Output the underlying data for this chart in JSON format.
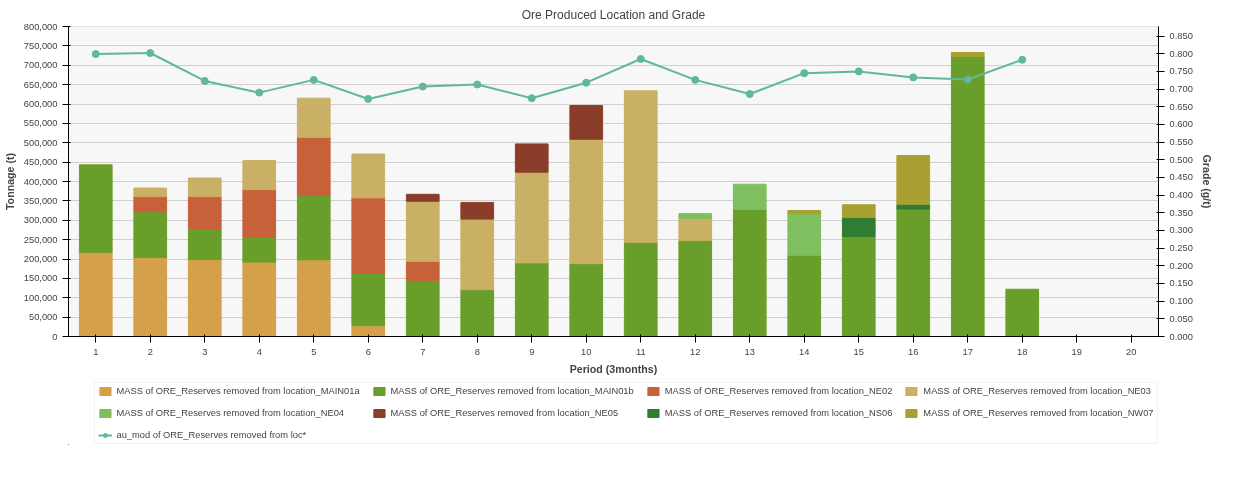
{
  "chart_data": {
    "type": "bar",
    "stacked": true,
    "title": "Ore Produced Location and Grade",
    "xlabel": "Period (3months)",
    "ylabel": "Tonnage (t)",
    "y2label": "Grade (g/t)",
    "x": [
      1,
      2,
      3,
      4,
      5,
      6,
      7,
      8,
      9,
      10,
      11,
      12,
      13,
      14,
      15,
      16,
      17,
      18
    ],
    "xlim": [
      0.5,
      20.5
    ],
    "xticks": [
      1,
      2,
      3,
      4,
      5,
      6,
      7,
      8,
      9,
      10,
      11,
      12,
      13,
      14,
      15,
      16,
      17,
      18,
      19,
      20
    ],
    "ylim": [
      0,
      800000
    ],
    "yticks": [
      {
        "value": 0,
        "label": "0"
      },
      {
        "value": 50000,
        "label": "50,000"
      },
      {
        "value": 100000,
        "label": "100,000"
      },
      {
        "value": 150000,
        "label": "150,000"
      },
      {
        "value": 200000,
        "label": "200,000"
      },
      {
        "value": 250000,
        "label": "250,000"
      },
      {
        "value": 300000,
        "label": "300,000"
      },
      {
        "value": 350000,
        "label": "350,000"
      },
      {
        "value": 400000,
        "label": "400,000"
      },
      {
        "value": 450000,
        "label": "450,000"
      },
      {
        "value": 500000,
        "label": "500,000"
      },
      {
        "value": 550000,
        "label": "550,000"
      },
      {
        "value": 600000,
        "label": "600,000"
      },
      {
        "value": 650000,
        "label": "650,000"
      },
      {
        "value": 700000,
        "label": "700,000"
      },
      {
        "value": 750000,
        "label": "750,000"
      },
      {
        "value": 800000,
        "label": "800,000"
      }
    ],
    "y2lim": [
      0,
      0.877
    ],
    "y2ticks": [
      {
        "value": 0,
        "label": "0.000"
      },
      {
        "value": 0.05,
        "label": "0.050"
      },
      {
        "value": 0.1,
        "label": "0.100"
      },
      {
        "value": 0.15,
        "label": "0.150"
      },
      {
        "value": 0.2,
        "label": "0.200"
      },
      {
        "value": 0.25,
        "label": "0.250"
      },
      {
        "value": 0.3,
        "label": "0.300"
      },
      {
        "value": 0.35,
        "label": "0.350"
      },
      {
        "value": 0.4,
        "label": "0.400"
      },
      {
        "value": 0.45,
        "label": "0.450"
      },
      {
        "value": 0.5,
        "label": "0.500"
      },
      {
        "value": 0.55,
        "label": "0.550"
      },
      {
        "value": 0.6,
        "label": "0.600"
      },
      {
        "value": 0.65,
        "label": "0.650"
      },
      {
        "value": 0.7,
        "label": "0.700"
      },
      {
        "value": 0.75,
        "label": "0.750"
      },
      {
        "value": 0.8,
        "label": "0.800"
      },
      {
        "value": 0.85,
        "label": "0.850"
      }
    ],
    "grid": "y",
    "legend": "bottom",
    "series": [
      {
        "name": "MASS of ORE_Reserves removed from location_MAIN01a",
        "color": "#d4a04a",
        "values": [
          217000,
          204000,
          199000,
          192000,
          198000,
          28000,
          null,
          null,
          null,
          null,
          null,
          null,
          null,
          null,
          null,
          null,
          null,
          null
        ]
      },
      {
        "name": "MASS of ORE_Reserves removed from location_MAIN01b",
        "color": "#6a9e2a",
        "values": [
          226000,
          118000,
          78000,
          65000,
          167000,
          135000,
          145000,
          121000,
          190000,
          188000,
          243000,
          248000,
          328000,
          210000,
          258000,
          329000,
          723000,
          122000
        ]
      },
      {
        "name": "MASS of ORE_Reserves removed from location_NE02",
        "color": "#c8603a",
        "values": [
          null,
          39000,
          84000,
          122000,
          149000,
          195000,
          49000,
          null,
          null,
          null,
          null,
          null,
          null,
          null,
          null,
          null,
          null,
          null
        ]
      },
      {
        "name": "MASS of ORE_Reserves removed from location_NE03",
        "color": "#c9b064",
        "values": [
          null,
          22000,
          48000,
          75000,
          101000,
          113000,
          155000,
          182000,
          234000,
          321000,
          391000,
          57000,
          null,
          null,
          null,
          null,
          null,
          null
        ]
      },
      {
        "name": "MASS of ORE_Reserves removed from location_NE04",
        "color": "#7fbf5f",
        "values": [
          null,
          null,
          null,
          null,
          null,
          null,
          null,
          null,
          null,
          null,
          null,
          12000,
          65000,
          107000,
          null,
          null,
          null,
          null
        ]
      },
      {
        "name": "MASS of ORE_Reserves removed from location_NE05",
        "color": "#8a3e2a",
        "values": [
          null,
          null,
          null,
          null,
          null,
          null,
          18000,
          43000,
          73000,
          87000,
          null,
          null,
          null,
          null,
          null,
          null,
          null,
          null
        ]
      },
      {
        "name": "MASS of ORE_Reserves removed from location_NS06",
        "color": "#2e7d32",
        "values": [
          null,
          null,
          null,
          null,
          null,
          null,
          null,
          null,
          null,
          null,
          null,
          null,
          null,
          null,
          49000,
          12000,
          null,
          null
        ]
      },
      {
        "name": "MASS of ORE_Reserves removed from location_NW07",
        "color": "#a8a030",
        "values": [
          null,
          null,
          null,
          null,
          null,
          null,
          null,
          null,
          null,
          null,
          null,
          null,
          null,
          8000,
          33000,
          126000,
          10000,
          null
        ]
      },
      {
        "name": "au_mod of ORE_Reserves removed from loc*",
        "type": "line",
        "axis": "y2",
        "marker": "circle",
        "color": "#5fb89a",
        "values": [
          0.799,
          0.802,
          0.723,
          0.69,
          0.726,
          0.672,
          0.707,
          0.713,
          0.674,
          0.718,
          0.785,
          0.726,
          0.686,
          0.745,
          0.75,
          0.733,
          0.727,
          0.783
        ]
      }
    ]
  }
}
